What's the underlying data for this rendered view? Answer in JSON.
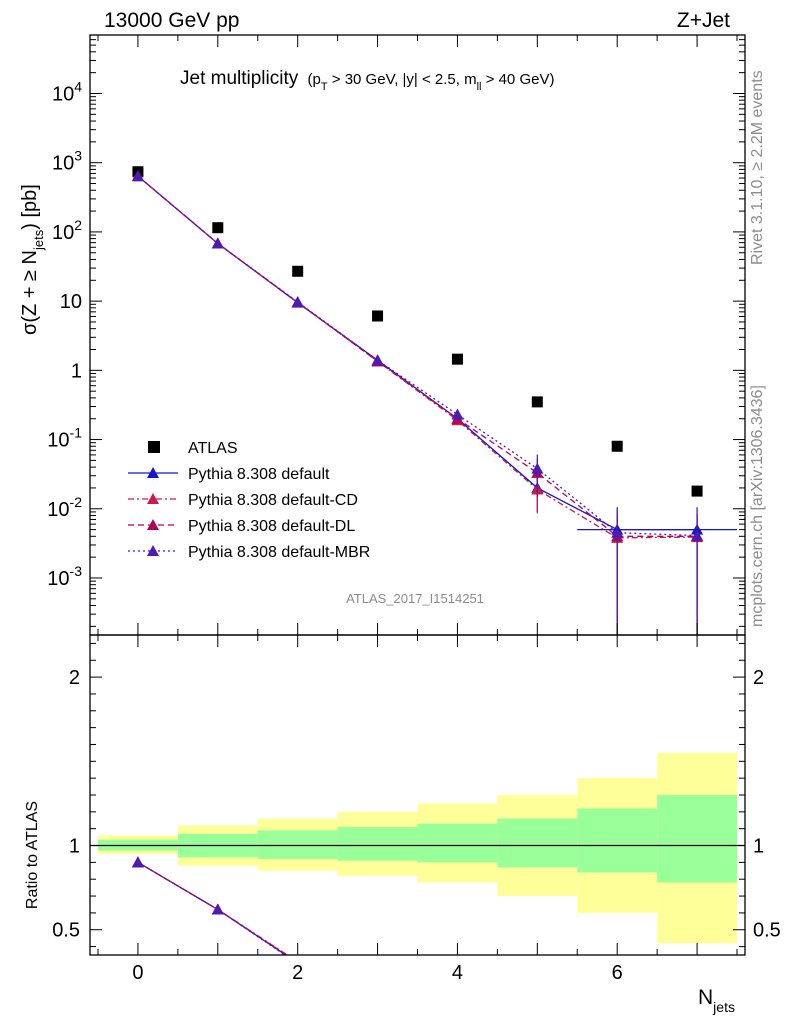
{
  "header": {
    "energy_label": "13000 GeV pp",
    "process_label": "Z+Jet"
  },
  "side_text": {
    "rivet": "Rivet 3.1.10, ≥ 2.2M events",
    "mcplots": "mcplots.cern.ch [arXiv:1306.3436]"
  },
  "chart_data": [
    {
      "type": "scatter",
      "title": "Jet multiplicity",
      "title_cuts": "(p_T > 30 GeV, |y| < 2.5, m_ll > 40 GeV)",
      "analysis_label": "ATLAS_2017_I1514251",
      "xlabel": "N_jets",
      "ylabel": "σ(Z + ≥ N_jets) [pb]",
      "yscale": "log",
      "xlim": [
        -0.6,
        7.6
      ],
      "ylim": [
        0.00015,
        70000
      ],
      "x_ticks": [
        "0",
        "2",
        "4",
        "6"
      ],
      "y_ticks": [
        "10^-3",
        "10^-2",
        "10^-1",
        "1",
        "10",
        "10^2",
        "10^3",
        "10^4"
      ],
      "legend_position": "bottom-left",
      "x": [
        0,
        1,
        2,
        3,
        4,
        5,
        6,
        7
      ],
      "series": [
        {
          "name": "ATLAS",
          "style": "data",
          "color": "#000000",
          "values": [
            740,
            115,
            27,
            6.1,
            1.45,
            0.35,
            0.08,
            0.018
          ]
        },
        {
          "name": "Pythia 8.308 default",
          "style": "solid",
          "color": "#1515cc",
          "values": [
            640,
            68,
            9.5,
            1.4,
            0.2,
            0.02,
            0.005,
            0.005
          ]
        },
        {
          "name": "Pythia 8.308 default-CD",
          "style": "dash-dot",
          "color": "#cc1a4d",
          "values": [
            640,
            68,
            9.6,
            1.35,
            0.19,
            0.019,
            0.0038,
            0.0039
          ]
        },
        {
          "name": "Pythia 8.308 default-DL",
          "style": "dashed",
          "color": "#b30059",
          "values": [
            640,
            68,
            9.6,
            1.35,
            0.2,
            0.033,
            0.004,
            0.004
          ]
        },
        {
          "name": "Pythia 8.308 default-MBR",
          "style": "dotted",
          "color": "#4d1ab3",
          "values": [
            640,
            68,
            9.7,
            1.4,
            0.23,
            0.038,
            0.0045,
            0.0041
          ]
        }
      ]
    },
    {
      "type": "area",
      "ylabel": "Ratio to ATLAS",
      "ylim": [
        0.35,
        2.25
      ],
      "y_ticks": [
        "0.5",
        "1",
        "2"
      ],
      "x_bins": [
        [
          -0.5,
          0.5
        ],
        [
          0.5,
          1.5
        ],
        [
          1.5,
          2.5
        ],
        [
          2.5,
          3.5
        ],
        [
          3.5,
          4.5
        ],
        [
          4.5,
          5.5
        ],
        [
          5.5,
          6.5
        ],
        [
          6.5,
          7.5
        ]
      ],
      "band_inner": {
        "color": "#99ff99",
        "lo": [
          0.97,
          0.93,
          0.92,
          0.91,
          0.9,
          0.87,
          0.84,
          0.78
        ],
        "hi": [
          1.035,
          1.07,
          1.09,
          1.11,
          1.13,
          1.16,
          1.22,
          1.3
        ]
      },
      "band_outer": {
        "color": "#ffff99",
        "lo": [
          0.95,
          0.88,
          0.85,
          0.82,
          0.78,
          0.7,
          0.6,
          0.42
        ],
        "hi": [
          1.06,
          1.12,
          1.16,
          1.2,
          1.25,
          1.3,
          1.4,
          1.55
        ]
      },
      "reference_line": 1,
      "series": [
        {
          "name": "Pythia 8.308 default",
          "x": [
            0,
            1,
            1.85
          ],
          "values": [
            0.9,
            0.62,
            0.35
          ]
        },
        {
          "name": "Pythia 8.308 default-CD",
          "x": [
            0,
            1,
            1.87
          ],
          "values": [
            0.9,
            0.62,
            0.35
          ]
        },
        {
          "name": "Pythia 8.308 default-DL",
          "x": [
            0,
            1,
            1.86
          ],
          "values": [
            0.9,
            0.62,
            0.35
          ]
        },
        {
          "name": "Pythia 8.308 default-MBR",
          "x": [
            0,
            1,
            1.84
          ],
          "values": [
            0.9,
            0.62,
            0.35
          ]
        }
      ]
    }
  ]
}
